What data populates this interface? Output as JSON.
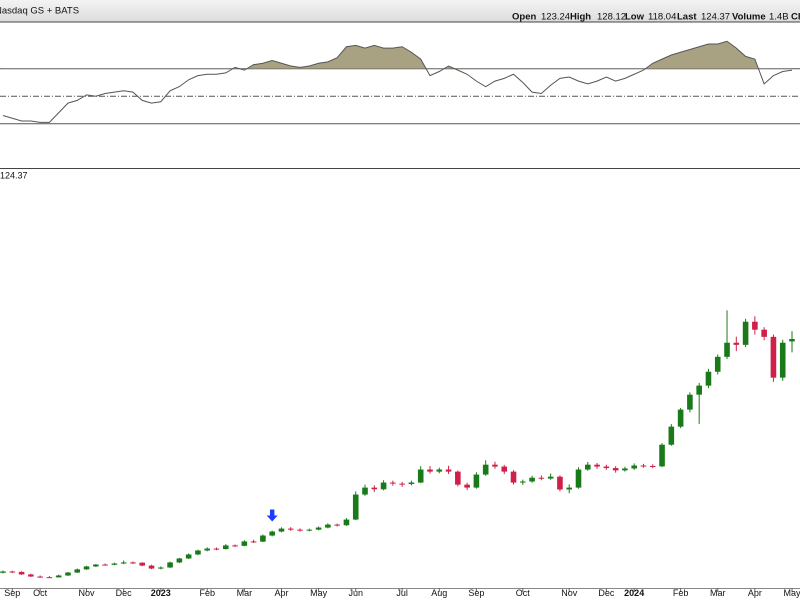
{
  "header": {
    "exchange": "Nasdaq GS + BATS",
    "fields": [
      {
        "label": "Open",
        "value": 123.24
      },
      {
        "label": "High",
        "value": 128.12
      },
      {
        "label": "Low",
        "value": 118.04
      },
      {
        "label": "Last",
        "value": 124.37
      },
      {
        "label": "Volume",
        "value": "1.4B"
      }
    ],
    "change_label": "Chg"
  },
  "chart_data": [
    {
      "type": "line",
      "color": "#555555",
      "fill_color": "#a8a283",
      "fill_above": 70,
      "ylim": [
        0,
        100
      ],
      "levels": [
        {
          "value": 70,
          "style": "solid"
        },
        {
          "value": 50,
          "style": "dashdot"
        },
        {
          "value": 30,
          "style": "solid"
        }
      ],
      "values": [
        36,
        34,
        32,
        32,
        31,
        31,
        38,
        45,
        47,
        51,
        50,
        52,
        53,
        54,
        53,
        47,
        45,
        46,
        54,
        57,
        62,
        65,
        66,
        66,
        67,
        71,
        69,
        73,
        74,
        76,
        74,
        72,
        71,
        72,
        74,
        75,
        78,
        86,
        87,
        85,
        87,
        85,
        85,
        86,
        82,
        77,
        65,
        68,
        72,
        69,
        66,
        61,
        57,
        61,
        63,
        66,
        60,
        53,
        52,
        58,
        63,
        64,
        61,
        59,
        61,
        64,
        61,
        63,
        66,
        69,
        74,
        77,
        80,
        82,
        84,
        86,
        88,
        88,
        90,
        85,
        79,
        77,
        59,
        65,
        68,
        69
      ]
    },
    {
      "type": "candlestick",
      "up_color": "#1a7a1a",
      "down_color": "#d0204a",
      "ylim": [
        5,
        200
      ],
      "last_label": 124.37,
      "signal": {
        "index": 29,
        "color": "#1e3cff"
      },
      "categories": [
        null,
        "Sep",
        null,
        null,
        "Oct",
        null,
        null,
        null,
        null,
        "Nov",
        null,
        null,
        null,
        "Dec",
        null,
        null,
        null,
        "2023",
        null,
        null,
        null,
        null,
        "Feb",
        null,
        null,
        null,
        "Mar",
        null,
        null,
        null,
        "Apr",
        null,
        null,
        null,
        "May",
        null,
        null,
        null,
        "Jun",
        null,
        null,
        null,
        null,
        "Jul",
        null,
        null,
        null,
        "Aug",
        null,
        null,
        null,
        "Sep",
        null,
        null,
        null,
        null,
        "Oct",
        null,
        null,
        null,
        null,
        "Nov",
        null,
        null,
        null,
        "Dec",
        null,
        null,
        "2024",
        null,
        null,
        null,
        null,
        "Feb",
        null,
        null,
        null,
        "Mar",
        null,
        null,
        null,
        "Apr",
        null,
        null,
        null,
        "May"
      ],
      "open": [
        13.2,
        13.8,
        13.6,
        12.4,
        11.4,
        11.1,
        11.0,
        11.9,
        13.3,
        14.8,
        16.2,
        17.1,
        17.0,
        17.6,
        18.1,
        18.0,
        16.6,
        15.2,
        15.7,
        18.1,
        20.0,
        21.9,
        23.8,
        24.7,
        24.5,
        26.2,
        26.0,
        28.1,
        28.0,
        30.9,
        32.8,
        34.2,
        33.7,
        33.3,
        33.7,
        34.7,
        36.1,
        35.8,
        38.5,
        50.4,
        53.7,
        52.9,
        56.1,
        55.6,
        55.4,
        56.1,
        62.3,
        61.3,
        62.3,
        61.3,
        55.1,
        53.7,
        59.9,
        64.6,
        63.7,
        61.3,
        56.1,
        56.6,
        58.4,
        58.0,
        58.9,
        52.8,
        53.7,
        62.3,
        64.6,
        63.7,
        63.0,
        61.9,
        62.8,
        64.2,
        64.0,
        63.8,
        74.1,
        82.7,
        90.8,
        97.9,
        102.2,
        108.8,
        115.9,
        122.6,
        121.6,
        132.6,
        128.8,
        125.4,
        106.0,
        123.24
      ],
      "high": [
        14.3,
        14.2,
        13.9,
        12.8,
        11.9,
        11.6,
        12.3,
        13.6,
        15.2,
        16.5,
        17.4,
        17.6,
        18.0,
        19.0,
        18.6,
        18.2,
        17.0,
        16.2,
        18.5,
        20.3,
        22.4,
        24.2,
        25.3,
        25.2,
        26.8,
        26.7,
        28.7,
        28.9,
        31.4,
        33.3,
        34.8,
        34.9,
        34.3,
        34.2,
        35.2,
        36.7,
        36.6,
        39.2,
        51.9,
        55.1,
        54.8,
        57.2,
        57.0,
        56.4,
        57.0,
        63.9,
        64.0,
        63.2,
        64.1,
        61.8,
        56.0,
        61.0,
        66.7,
        66.0,
        64.5,
        62.0,
        57.5,
        59.3,
        59.5,
        60.4,
        59.5,
        55.2,
        63.4,
        65.9,
        65.4,
        64.6,
        63.9,
        63.6,
        65.2,
        65.0,
        64.8,
        74.9,
        83.9,
        91.6,
        99.0,
        103.5,
        110.2,
        117.0,
        138.0,
        125.5,
        134.0,
        135.2,
        130.0,
        126.5,
        124.0,
        128.12
      ],
      "low": [
        12.9,
        13.1,
        12.2,
        11.2,
        10.8,
        10.8,
        10.9,
        11.7,
        13.1,
        14.6,
        15.9,
        16.6,
        16.8,
        17.3,
        17.4,
        16.3,
        14.9,
        14.8,
        15.5,
        17.8,
        19.7,
        21.5,
        23.4,
        23.9,
        24.2,
        25.5,
        25.8,
        27.4,
        27.8,
        30.5,
        32.4,
        33.1,
        32.8,
        32.9,
        33.4,
        34.3,
        35.2,
        35.5,
        38.2,
        49.8,
        51.6,
        52.4,
        54.6,
        54.1,
        54.8,
        55.8,
        60.4,
        60.5,
        60.2,
        54.3,
        52.6,
        53.2,
        59.3,
        62.7,
        60.1,
        55.2,
        55.0,
        56.0,
        57.2,
        57.4,
        51.9,
        51.0,
        53.2,
        61.7,
        62.6,
        62.2,
        60.8,
        61.3,
        62.1,
        63.2,
        62.9,
        63.4,
        73.6,
        82.0,
        89.5,
        84.0,
        101.0,
        107.5,
        114.8,
        118.6,
        120.5,
        126.5,
        123.8,
        104.0,
        104.5,
        118.04
      ],
      "close": [
        13.8,
        13.6,
        12.4,
        11.4,
        11.0,
        11.0,
        11.9,
        13.3,
        14.8,
        16.2,
        17.1,
        17.0,
        17.6,
        18.1,
        18.0,
        16.6,
        15.2,
        15.7,
        18.1,
        20.0,
        21.9,
        23.8,
        24.7,
        24.5,
        26.2,
        26.0,
        28.1,
        28.0,
        30.9,
        32.8,
        34.2,
        33.7,
        33.3,
        33.7,
        34.7,
        36.1,
        35.8,
        38.5,
        50.4,
        53.7,
        52.9,
        56.1,
        55.6,
        55.4,
        56.1,
        62.3,
        61.3,
        62.3,
        61.3,
        55.1,
        53.7,
        59.9,
        64.6,
        63.7,
        61.3,
        56.1,
        56.6,
        58.4,
        58.0,
        58.9,
        52.8,
        53.7,
        62.3,
        64.6,
        63.7,
        63.0,
        61.9,
        62.8,
        64.2,
        64.0,
        63.8,
        74.1,
        82.7,
        90.8,
        97.9,
        102.2,
        108.8,
        115.9,
        122.6,
        121.6,
        132.6,
        128.8,
        125.4,
        106.0,
        122.6,
        124.37
      ]
    }
  ]
}
